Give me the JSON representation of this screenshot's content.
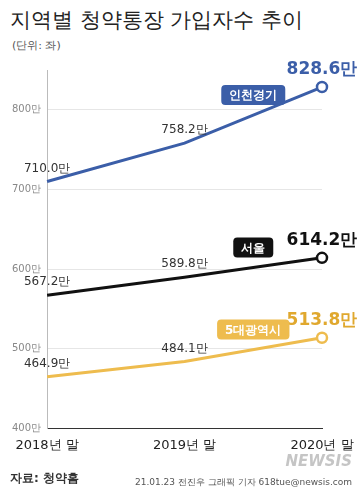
{
  "chart_data": {
    "type": "line",
    "title": "지역별 청약통장 가입자수 추이",
    "subtitle": "(단위: 좌)",
    "categories": [
      "2018년 말",
      "2019년 말",
      "2020년 말"
    ],
    "series": [
      {
        "name": "인천경기",
        "color": "#3b5ea8",
        "values": [
          710.0,
          758.2,
          828.6
        ],
        "value_labels": [
          "710.0만",
          "758.2만",
          "828.6만"
        ]
      },
      {
        "name": "서울",
        "color": "#111111",
        "values": [
          567.2,
          589.8,
          614.2
        ],
        "value_labels": [
          "567.2만",
          "589.8만",
          "614.2만"
        ]
      },
      {
        "name": "5대광역시",
        "color": "#eebc4e",
        "values": [
          464.9,
          484.1,
          513.8
        ],
        "value_labels": [
          "464.9만",
          "484.1만",
          "513.8만"
        ]
      }
    ],
    "ylim": [
      400,
      850
    ],
    "yticks": [
      {
        "value": 400,
        "label": "400만"
      },
      {
        "value": 500,
        "label": "500만"
      },
      {
        "value": 600,
        "label": "600만"
      },
      {
        "value": 700,
        "label": "700만"
      },
      {
        "value": 800,
        "label": "800만"
      }
    ],
    "grid": true,
    "data_labels": true,
    "source": "자료: 청약홈",
    "credit": "21.01.23 전진우 그래픽 기자 618tue@newsis.com",
    "watermark": "NEWSIS"
  }
}
